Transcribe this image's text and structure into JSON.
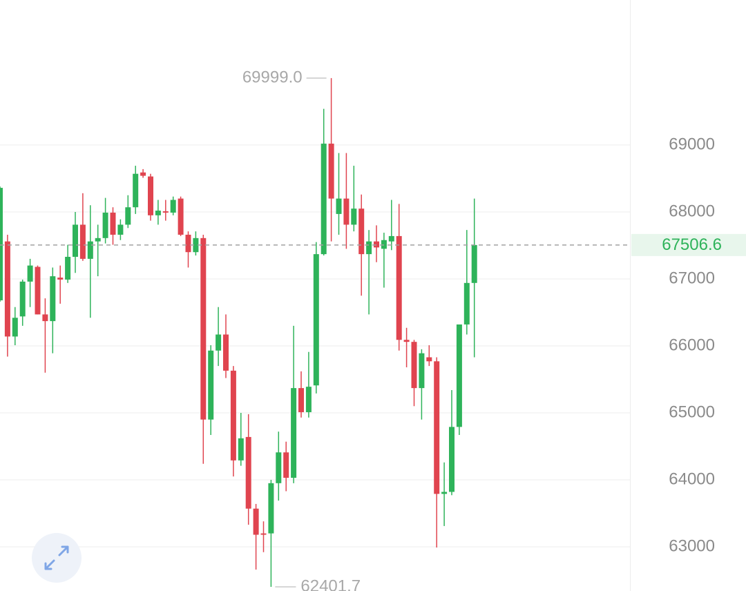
{
  "chart_data": {
    "type": "candlestick",
    "up_color": "#2eb35a",
    "down_color": "#e0444f",
    "grid": true,
    "ylim": [
      62340,
      71165
    ],
    "yticks": [
      63000,
      64000,
      65000,
      66000,
      67000,
      68000,
      69000
    ],
    "open": [
      66680,
      67560,
      66140,
      66440,
      66960,
      67180,
      66470,
      66370,
      67020,
      66990,
      67330,
      67810,
      67300,
      67560,
      67610,
      67990,
      67660,
      67810,
      68070,
      68590,
      68530,
      67950,
      68010,
      67990,
      68200,
      67660,
      67400,
      67610,
      64900,
      65930,
      66170,
      65630,
      64290,
      64640,
      63570,
      63200,
      63200,
      63950,
      64410,
      64030,
      65370,
      65010,
      65410,
      67370,
      69020,
      67970,
      68200,
      67810,
      68050,
      67370,
      67560,
      67450,
      67560,
      67640,
      66090,
      66060,
      65370,
      65830,
      65770,
      63790,
      63820,
      64790,
      66320,
      66940
    ],
    "high": [
      68380,
      67660,
      66580,
      66990,
      67300,
      67200,
      66710,
      67170,
      67200,
      67510,
      68000,
      68280,
      68100,
      67810,
      68210,
      68070,
      67890,
      68250,
      68690,
      68640,
      68570,
      68180,
      68180,
      68230,
      68230,
      67710,
      67710,
      67660,
      66010,
      66580,
      66470,
      65700,
      65000,
      64980,
      63640,
      63380,
      64000,
      64720,
      64570,
      66300,
      65620,
      65910,
      67550,
      69540,
      69999,
      68880,
      68880,
      68690,
      68260,
      67730,
      67800,
      67690,
      68180,
      68120,
      66270,
      66090,
      65950,
      66010,
      65830,
      64260,
      65340,
      66320,
      67730,
      68200
    ],
    "low": [
      66660,
      65840,
      66010,
      66300,
      66580,
      66470,
      65600,
      65890,
      66630,
      66940,
      67090,
      67270,
      66420,
      67040,
      67530,
      67510,
      67580,
      67760,
      67970,
      68510,
      67870,
      67810,
      67870,
      67950,
      67640,
      67170,
      67350,
      64240,
      64670,
      65700,
      65520,
      64050,
      64210,
      63330,
      62660,
      62920,
      62401.7,
      63690,
      63830,
      63950,
      64930,
      64930,
      65290,
      67350,
      67560,
      67660,
      67450,
      67710,
      66750,
      66470,
      67250,
      66870,
      67430,
      65930,
      65680,
      65100,
      64900,
      65700,
      62990,
      63310,
      63770,
      64670,
      66170,
      65830
    ],
    "close": [
      68360,
      66140,
      66420,
      66960,
      67200,
      66470,
      66370,
      67040,
      66990,
      67330,
      67810,
      67300,
      67560,
      67610,
      67990,
      67660,
      67810,
      68070,
      68570,
      68540,
      67950,
      68020,
      67990,
      68180,
      67660,
      67400,
      67610,
      64900,
      65930,
      66170,
      65630,
      64290,
      64620,
      63570,
      63180,
      63180,
      63950,
      64410,
      64030,
      65370,
      65010,
      65390,
      67370,
      69020,
      68200,
      68200,
      67810,
      68050,
      67370,
      67560,
      67470,
      67580,
      67640,
      66090,
      66060,
      65370,
      65890,
      65770,
      63790,
      63820,
      64790,
      66320,
      66940,
      67506.6
    ],
    "annotations": [
      {
        "value": 69999,
        "label": "69999.0"
      },
      {
        "value": 62401.7,
        "label": "62401.7"
      }
    ]
  }
}
